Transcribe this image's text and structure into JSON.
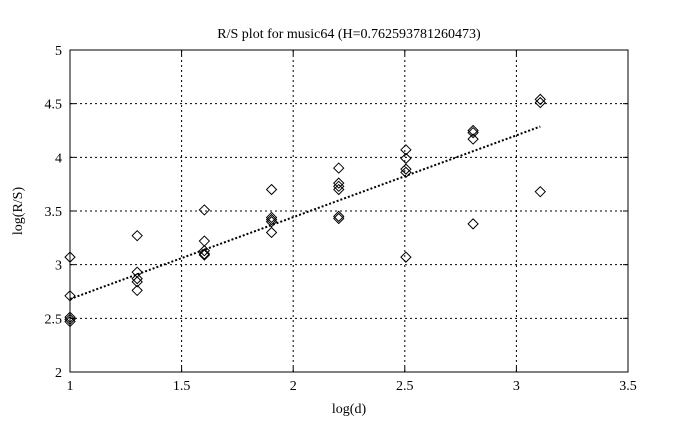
{
  "chart_data": {
    "type": "scatter",
    "title": "R/S plot for music64 (H=0.762593781260473)",
    "xlabel": "log(d)",
    "ylabel": "log(R/S)",
    "xlim": [
      1,
      3.5
    ],
    "ylim": [
      2,
      5
    ],
    "xticks": [
      "1",
      "1.5",
      "2",
      "2.5",
      "3",
      "3.5"
    ],
    "yticks": [
      "2",
      "2.5",
      "3",
      "3.5",
      "4",
      "4.5",
      "5"
    ],
    "grid": true,
    "marker": "diamond",
    "points": [
      [
        1,
        3.07
      ],
      [
        1,
        2.71
      ],
      [
        1,
        2.51
      ],
      [
        1,
        2.49
      ],
      [
        1,
        2.47
      ],
      [
        1.301,
        3.27
      ],
      [
        1.301,
        2.93
      ],
      [
        1.301,
        2.87
      ],
      [
        1.301,
        2.84
      ],
      [
        1.301,
        2.76
      ],
      [
        1.602,
        3.51
      ],
      [
        1.602,
        3.22
      ],
      [
        1.602,
        3.13
      ],
      [
        1.602,
        3.1
      ],
      [
        1.602,
        3.09
      ],
      [
        1.903,
        3.7
      ],
      [
        1.903,
        3.44
      ],
      [
        1.903,
        3.42
      ],
      [
        1.903,
        3.4
      ],
      [
        1.903,
        3.3
      ],
      [
        2.204,
        3.9
      ],
      [
        2.204,
        3.76
      ],
      [
        2.204,
        3.73
      ],
      [
        2.204,
        3.7
      ],
      [
        2.204,
        3.45
      ],
      [
        2.204,
        3.43
      ],
      [
        2.505,
        4.07
      ],
      [
        2.505,
        3.99
      ],
      [
        2.505,
        3.89
      ],
      [
        2.505,
        3.86
      ],
      [
        2.505,
        3.07
      ],
      [
        2.806,
        4.25
      ],
      [
        2.806,
        4.23
      ],
      [
        2.806,
        4.17
      ],
      [
        2.806,
        3.38
      ],
      [
        3.107,
        4.54
      ],
      [
        3.107,
        4.51
      ],
      [
        3.107,
        3.68
      ]
    ],
    "fit_line": {
      "slope": 0.762593781260473,
      "x_range": [
        1,
        3.107
      ],
      "y_at_x1": 2.68,
      "style": "dotted"
    }
  }
}
